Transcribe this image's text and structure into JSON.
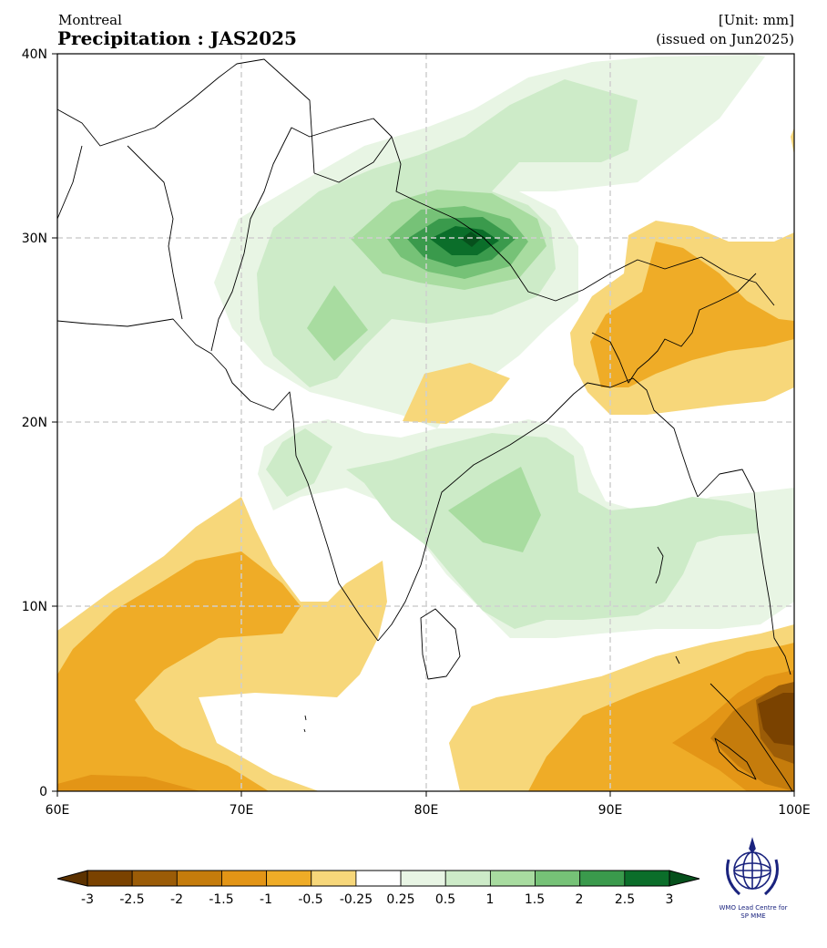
{
  "header": {
    "model": "Montreal",
    "title": "Precipitation : JAS2025",
    "unit": "[Unit: mm]",
    "issued": "(issued on Jun2025)"
  },
  "map": {
    "lon_range": [
      60,
      100
    ],
    "lat_range": [
      0,
      40
    ],
    "x_ticks": [
      "60E",
      "70E",
      "80E",
      "90E",
      "100E"
    ],
    "y_ticks": [
      "40N",
      "30N",
      "20N",
      "10N",
      "0"
    ],
    "grid": "dashed",
    "features": [
      "coastlines",
      "country-borders"
    ]
  },
  "colorbar": {
    "ticks": [
      "-3",
      "-2.5",
      "-2",
      "-1.5",
      "-1",
      "-0.5",
      "-0.25",
      "0.25",
      "0.5",
      "1",
      "1.5",
      "2",
      "2.5",
      "3"
    ],
    "colors": [
      "#7a4200",
      "#9b5c07",
      "#c57c0c",
      "#e39516",
      "#efac27",
      "#f7d77a",
      "#ffffff",
      "#e8f5e4",
      "#cdebc8",
      "#a8dca0",
      "#76c277",
      "#3a9a4c",
      "#0b6e2a"
    ],
    "under_color": "#5c3200",
    "over_color": "#06501c"
  },
  "logo": {
    "text_line1": "WMO Lead Centre for",
    "text_line2": "SP MME",
    "primary_color": "#1a237e"
  }
}
